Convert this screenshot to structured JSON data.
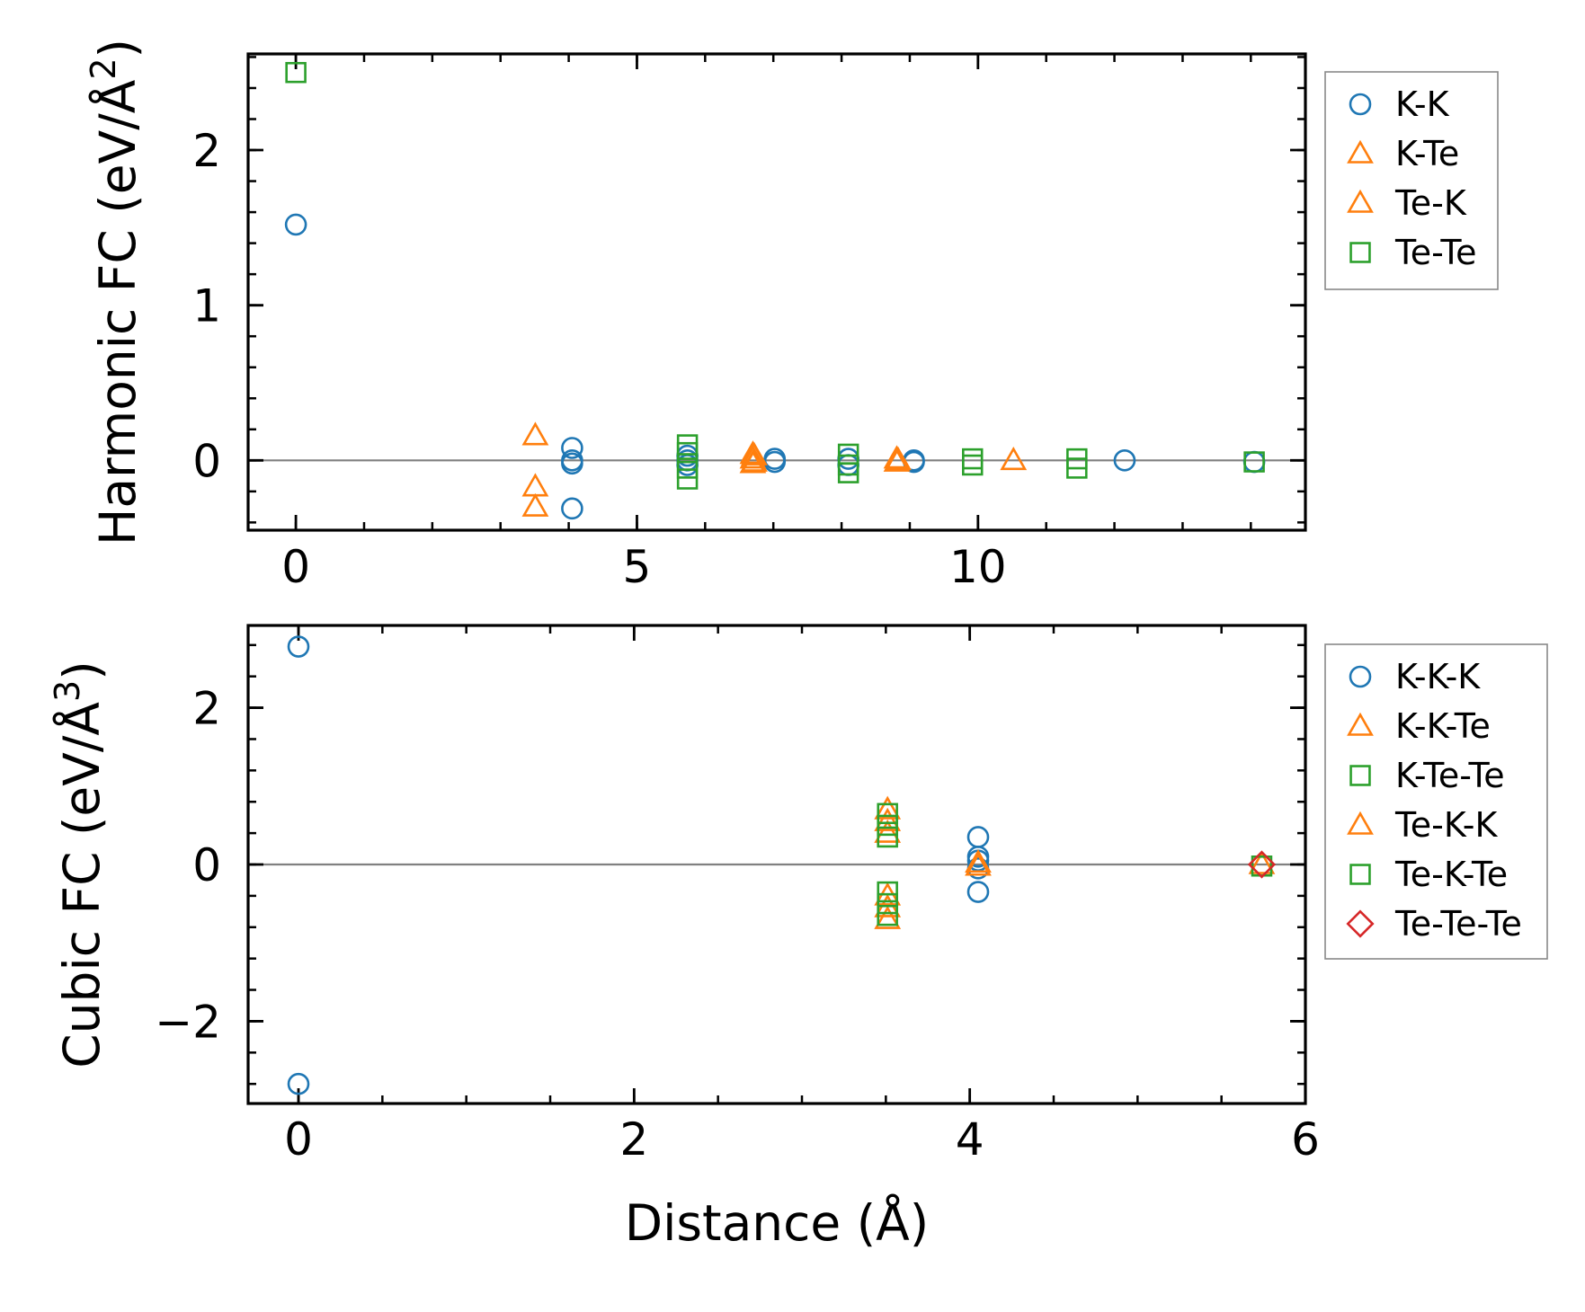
{
  "chart_data": [
    {
      "type": "scatter",
      "id": "harmonic",
      "xlabel": "",
      "ylabel_main": "Harmonic FC (eV/Å",
      "ylabel_sup": "2",
      "ylabel_close": ")",
      "xlim": [
        -0.7,
        14.8
      ],
      "ylim": [
        -0.45,
        2.62
      ],
      "xticks": [
        0,
        5,
        10
      ],
      "xtick_labels": [
        "0",
        "5",
        "10"
      ],
      "yticks": [
        0,
        1,
        2
      ],
      "ytick_labels": [
        "0",
        "1",
        "2"
      ],
      "zero_line": true,
      "legend_position": "right",
      "series": [
        {
          "name": "K-K",
          "marker": "circle",
          "color": "#1f77b4",
          "points": [
            [
              0,
              1.52
            ],
            [
              4.05,
              0.08
            ],
            [
              4.05,
              0.0
            ],
            [
              4.05,
              -0.02
            ],
            [
              4.05,
              -0.31
            ],
            [
              5.74,
              0.03
            ],
            [
              5.74,
              0.0
            ],
            [
              5.74,
              -0.03
            ],
            [
              7.02,
              0.01
            ],
            [
              7.02,
              -0.01
            ],
            [
              8.1,
              0.01
            ],
            [
              8.1,
              -0.03
            ],
            [
              9.06,
              0.0
            ],
            [
              9.06,
              -0.01
            ],
            [
              12.15,
              0.0
            ],
            [
              14.05,
              -0.01
            ]
          ]
        },
        {
          "name": "K-Te",
          "marker": "triangle",
          "color": "#ff7f0e",
          "points": [
            [
              3.51,
              0.16
            ],
            [
              3.51,
              -0.17
            ],
            [
              3.51,
              -0.3
            ],
            [
              6.7,
              0.04
            ],
            [
              6.7,
              0.01
            ],
            [
              6.7,
              -0.02
            ],
            [
              8.81,
              0.01
            ],
            [
              8.81,
              -0.01
            ],
            [
              10.52,
              0.0
            ]
          ]
        },
        {
          "name": "Te-K",
          "marker": "triangle",
          "color": "#ff7f0e",
          "points": [
            [
              6.72,
              0.03
            ],
            [
              6.72,
              -0.01
            ],
            [
              8.83,
              0.0
            ]
          ]
        },
        {
          "name": "Te-Te",
          "marker": "square",
          "color": "#2ca02c",
          "points": [
            [
              0,
              2.5
            ],
            [
              5.74,
              0.1
            ],
            [
              5.74,
              0.05
            ],
            [
              5.74,
              -0.05
            ],
            [
              5.74,
              -0.12
            ],
            [
              8.1,
              0.04
            ],
            [
              8.1,
              -0.03
            ],
            [
              8.1,
              -0.08
            ],
            [
              9.92,
              0.01
            ],
            [
              9.92,
              -0.03
            ],
            [
              11.45,
              0.01
            ],
            [
              11.45,
              -0.05
            ],
            [
              14.05,
              -0.01
            ]
          ]
        }
      ]
    },
    {
      "type": "scatter",
      "id": "cubic",
      "xlabel": "Distance (Å)",
      "ylabel_main": "Cubic FC (eV/Å",
      "ylabel_sup": "3",
      "ylabel_close": ")",
      "xlim": [
        -0.3,
        6.0
      ],
      "ylim": [
        -3.05,
        3.05
      ],
      "xticks": [
        0,
        2,
        4,
        6
      ],
      "xtick_labels": [
        "0",
        "2",
        "4",
        "6"
      ],
      "yticks": [
        -2,
        0,
        2
      ],
      "ytick_labels": [
        "−2",
        "0",
        "2"
      ],
      "zero_line": true,
      "legend_position": "right",
      "series": [
        {
          "name": "K-K-K",
          "marker": "circle",
          "color": "#1f77b4",
          "points": [
            [
              0,
              2.78
            ],
            [
              0,
              -2.8
            ],
            [
              4.05,
              0.35
            ],
            [
              4.05,
              0.1
            ],
            [
              4.05,
              0.05
            ],
            [
              4.05,
              -0.05
            ],
            [
              4.05,
              -0.35
            ]
          ]
        },
        {
          "name": "K-K-Te",
          "marker": "triangle",
          "color": "#ff7f0e",
          "points": [
            [
              3.51,
              0.7
            ],
            [
              3.51,
              0.55
            ],
            [
              3.51,
              0.4
            ],
            [
              3.51,
              -0.4
            ],
            [
              3.51,
              -0.55
            ],
            [
              3.51,
              -0.7
            ],
            [
              4.05,
              0.02
            ]
          ]
        },
        {
          "name": "K-Te-Te",
          "marker": "square",
          "color": "#2ca02c",
          "points": [
            [
              3.51,
              0.65
            ],
            [
              3.51,
              0.5
            ],
            [
              3.51,
              0.35
            ],
            [
              3.51,
              -0.35
            ],
            [
              3.51,
              -0.5
            ],
            [
              3.51,
              -0.65
            ]
          ]
        },
        {
          "name": "Te-K-K",
          "marker": "triangle",
          "color": "#ff7f0e",
          "points": [
            [
              4.05,
              -0.02
            ],
            [
              5.74,
              0.0
            ]
          ]
        },
        {
          "name": "Te-K-Te",
          "marker": "square",
          "color": "#2ca02c",
          "points": [
            [
              5.74,
              -0.02
            ]
          ]
        },
        {
          "name": "Te-Te-Te",
          "marker": "diamond",
          "color": "#d62728",
          "points": [
            [
              5.74,
              0.0
            ]
          ]
        }
      ]
    }
  ]
}
